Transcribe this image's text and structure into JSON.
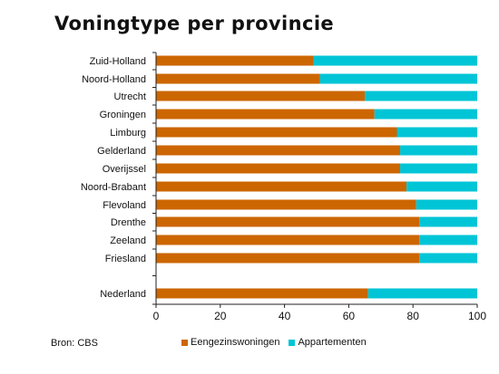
{
  "chart_data": {
    "type": "bar",
    "orientation": "horizontal",
    "stacked": true,
    "title": "Voningtype per provincie",
    "categories": [
      "Zuid-Holland",
      "Noord-Holland",
      "Utrecht",
      "Groningen",
      "Limburg",
      "Gelderland",
      "Overijssel",
      "Noord-Brabant",
      "Flevoland",
      "Drenthe",
      "Zeeland",
      "Friesland",
      "Nederland"
    ],
    "series": [
      {
        "name": "Eengezinswoningen",
        "color": "#cc6600",
        "values": [
          49,
          51,
          65,
          68,
          75,
          76,
          76,
          78,
          81,
          82,
          82,
          82,
          66
        ]
      },
      {
        "name": "Appartementen",
        "color": "#00c5d6",
        "values": [
          51,
          49,
          35,
          32,
          25,
          24,
          24,
          22,
          19,
          18,
          18,
          18,
          34
        ]
      }
    ],
    "xlim": [
      0,
      100
    ],
    "xticks": [
      "0",
      "20",
      "40",
      "60",
      "80",
      "100"
    ],
    "grid": false,
    "legend_position": "bottom",
    "source": "Bron: CBS"
  }
}
